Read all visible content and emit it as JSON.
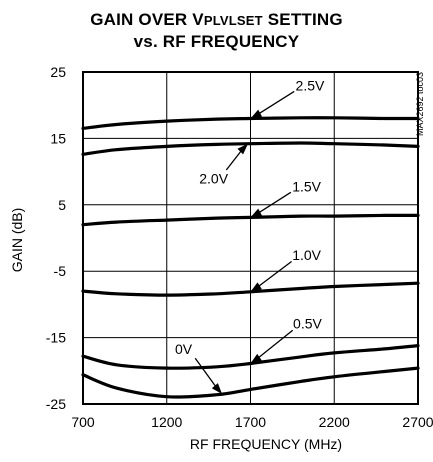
{
  "chart_data": {
    "type": "line",
    "title_prefix": "GAIN OVER V",
    "title_subscript": "PLVLSET",
    "title_suffix": " SETTING",
    "subtitle": "vs. RF FREQUENCY",
    "xlabel": "RF FREQUENCY (MHz)",
    "ylabel": "GAIN (dB)",
    "xlim": [
      700,
      2700
    ],
    "ylim": [
      -25,
      25
    ],
    "xticks": [
      700,
      1200,
      1700,
      2200,
      2700
    ],
    "yticks": [
      25,
      15,
      5,
      -5,
      -15,
      -25
    ],
    "grid": true,
    "side_label": "MAX2692 toc03",
    "series": [
      {
        "name": "2.5V",
        "x": [
          700,
          900,
          1200,
          1500,
          1700,
          2000,
          2200,
          2500,
          2700
        ],
        "y": [
          16.5,
          17.1,
          17.6,
          17.9,
          18.0,
          18.1,
          18.1,
          18.0,
          18.0
        ]
      },
      {
        "name": "2.0V",
        "x": [
          700,
          900,
          1200,
          1500,
          1700,
          2000,
          2200,
          2500,
          2700
        ],
        "y": [
          12.6,
          13.3,
          13.8,
          14.1,
          14.2,
          14.3,
          14.2,
          14.0,
          13.8
        ]
      },
      {
        "name": "1.5V",
        "x": [
          700,
          900,
          1200,
          1500,
          1700,
          2000,
          2200,
          2500,
          2700
        ],
        "y": [
          2.0,
          2.4,
          2.7,
          3.0,
          3.1,
          3.3,
          3.3,
          3.4,
          3.4
        ]
      },
      {
        "name": "1.0V",
        "x": [
          700,
          900,
          1200,
          1500,
          1700,
          2000,
          2200,
          2500,
          2700
        ],
        "y": [
          -8.0,
          -8.4,
          -8.6,
          -8.4,
          -8.1,
          -7.6,
          -7.3,
          -7.0,
          -6.8
        ]
      },
      {
        "name": "0.5V",
        "x": [
          700,
          900,
          1200,
          1500,
          1700,
          2000,
          2200,
          2500,
          2700
        ],
        "y": [
          -17.8,
          -19.1,
          -19.6,
          -19.4,
          -18.9,
          -17.9,
          -17.3,
          -16.7,
          -16.2
        ]
      },
      {
        "name": "0V",
        "x": [
          700,
          900,
          1200,
          1500,
          1700,
          2000,
          2200,
          2500,
          2700
        ],
        "y": [
          -20.6,
          -22.6,
          -23.9,
          -23.6,
          -22.8,
          -21.6,
          -20.9,
          -20.1,
          -19.6
        ]
      }
    ],
    "annotations": [
      {
        "text": "2.5V",
        "x": 2055,
        "y": 22.2,
        "arrow_to": [
          1700,
          18.0
        ]
      },
      {
        "text": "2.0V",
        "x": 1480,
        "y": 8.2,
        "arrow_to": [
          1685,
          14.2
        ]
      },
      {
        "text": "1.5V",
        "x": 2035,
        "y": 7.0,
        "arrow_to": [
          1700,
          3.1
        ]
      },
      {
        "text": "1.0V",
        "x": 2035,
        "y": -3.3,
        "arrow_to": [
          1700,
          -8.1
        ]
      },
      {
        "text": "0.5V",
        "x": 2040,
        "y": -13.6,
        "arrow_to": [
          1700,
          -18.9
        ]
      },
      {
        "text": "0V",
        "x": 1300,
        "y": -17.5,
        "arrow_to": [
          1530,
          -23.5
        ]
      }
    ]
  }
}
